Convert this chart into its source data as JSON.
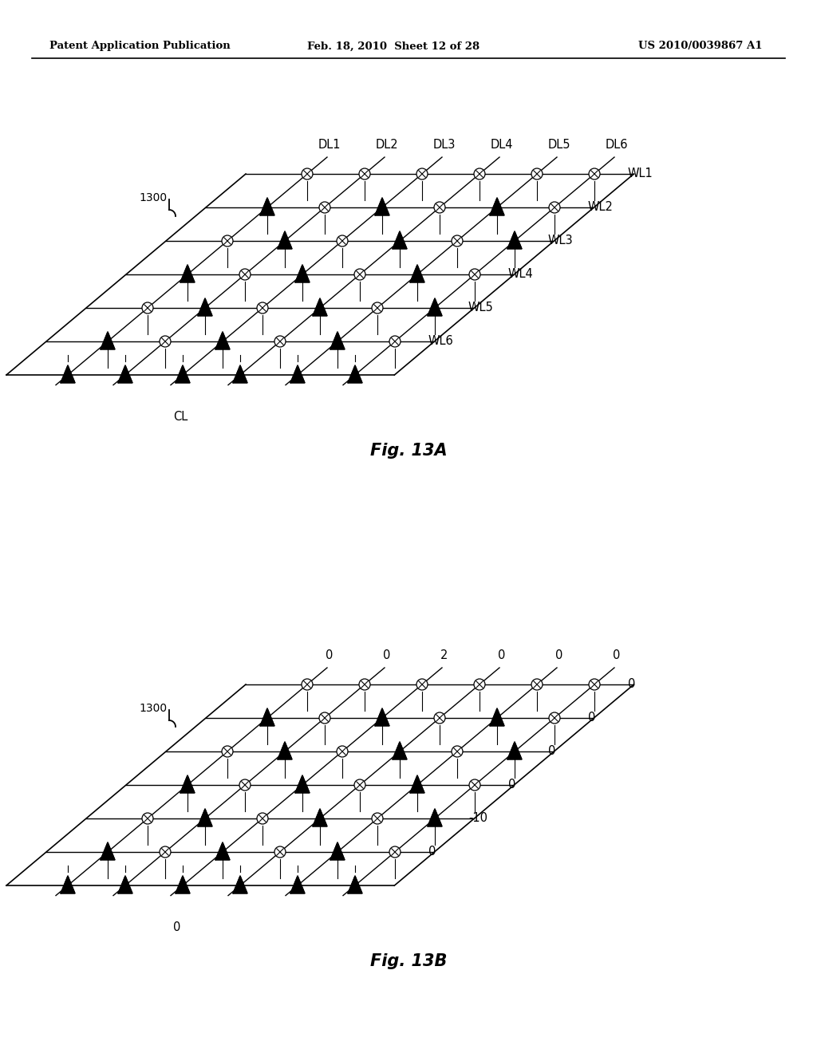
{
  "header_left": "Patent Application Publication",
  "header_mid": "Feb. 18, 2010  Sheet 12 of 28",
  "header_right": "US 2010/0039867 A1",
  "fig_a_caption": "Fig. 13A",
  "fig_b_caption": "Fig. 13B",
  "label_1300": "1300",
  "dl_labels": [
    "DL1",
    "DL2",
    "DL3",
    "DL4",
    "DL5",
    "DL6"
  ],
  "wl_labels_a": [
    "WL1",
    "WL2",
    "WL3",
    "WL4",
    "WL5",
    "WL6"
  ],
  "cl_label": "CL",
  "col_values_b": [
    "0",
    "0",
    "2",
    "0",
    "0",
    "0"
  ],
  "wl_values_b": [
    "0",
    "0",
    "0",
    "0",
    "-10",
    "0"
  ],
  "cl_value_b": "0",
  "bg_color": "#ffffff"
}
